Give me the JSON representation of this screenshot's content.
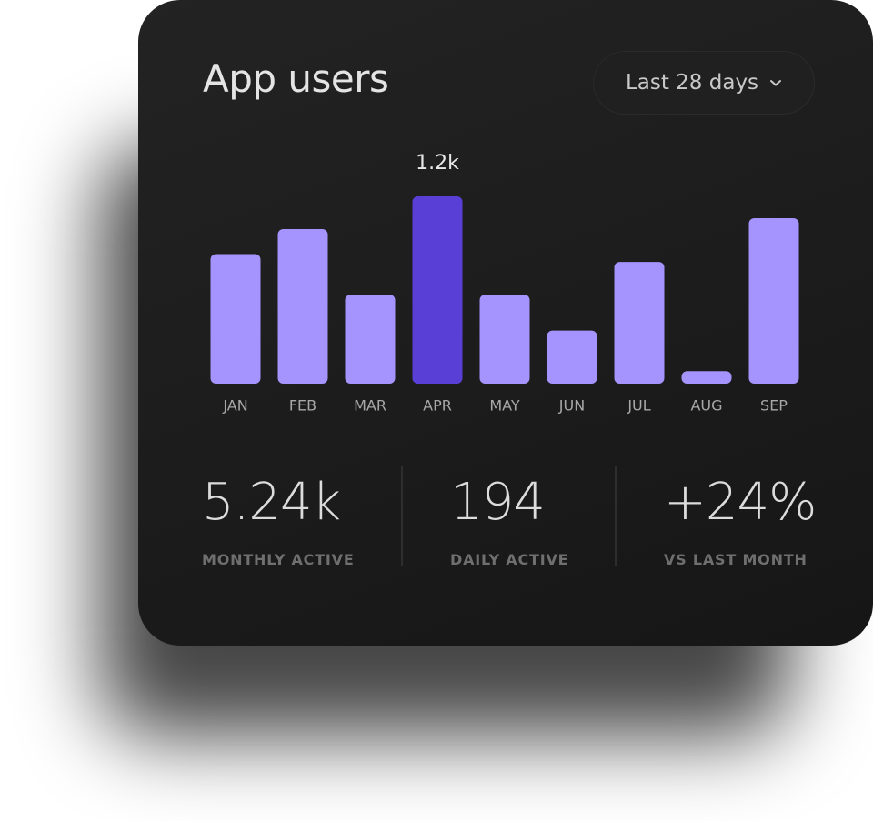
{
  "header": {
    "title": "App users",
    "range_selector": "Last 28 days"
  },
  "chart_data": {
    "type": "bar",
    "categories": [
      "JAN",
      "FEB",
      "MAR",
      "APR",
      "MAY",
      "JUN",
      "JUL",
      "AUG",
      "SEP"
    ],
    "values": [
      830,
      990,
      570,
      1200,
      570,
      340,
      780,
      80,
      1060
    ],
    "value_labels": [
      null,
      null,
      null,
      "1.2k",
      null,
      null,
      null,
      null,
      null
    ],
    "colors": [
      "#a594fd",
      "#a594fd",
      "#a594fd",
      "#5a3fd6",
      "#a594fd",
      "#a594fd",
      "#a594fd",
      "#a594fd",
      "#a594fd"
    ]
  },
  "stats": [
    {
      "value": "5.24k",
      "label": "MONTHLY ACTIVE"
    },
    {
      "value": "194",
      "label": "DAILY ACTIVE"
    },
    {
      "value": "+24%",
      "label": "VS LAST MONTH"
    }
  ]
}
